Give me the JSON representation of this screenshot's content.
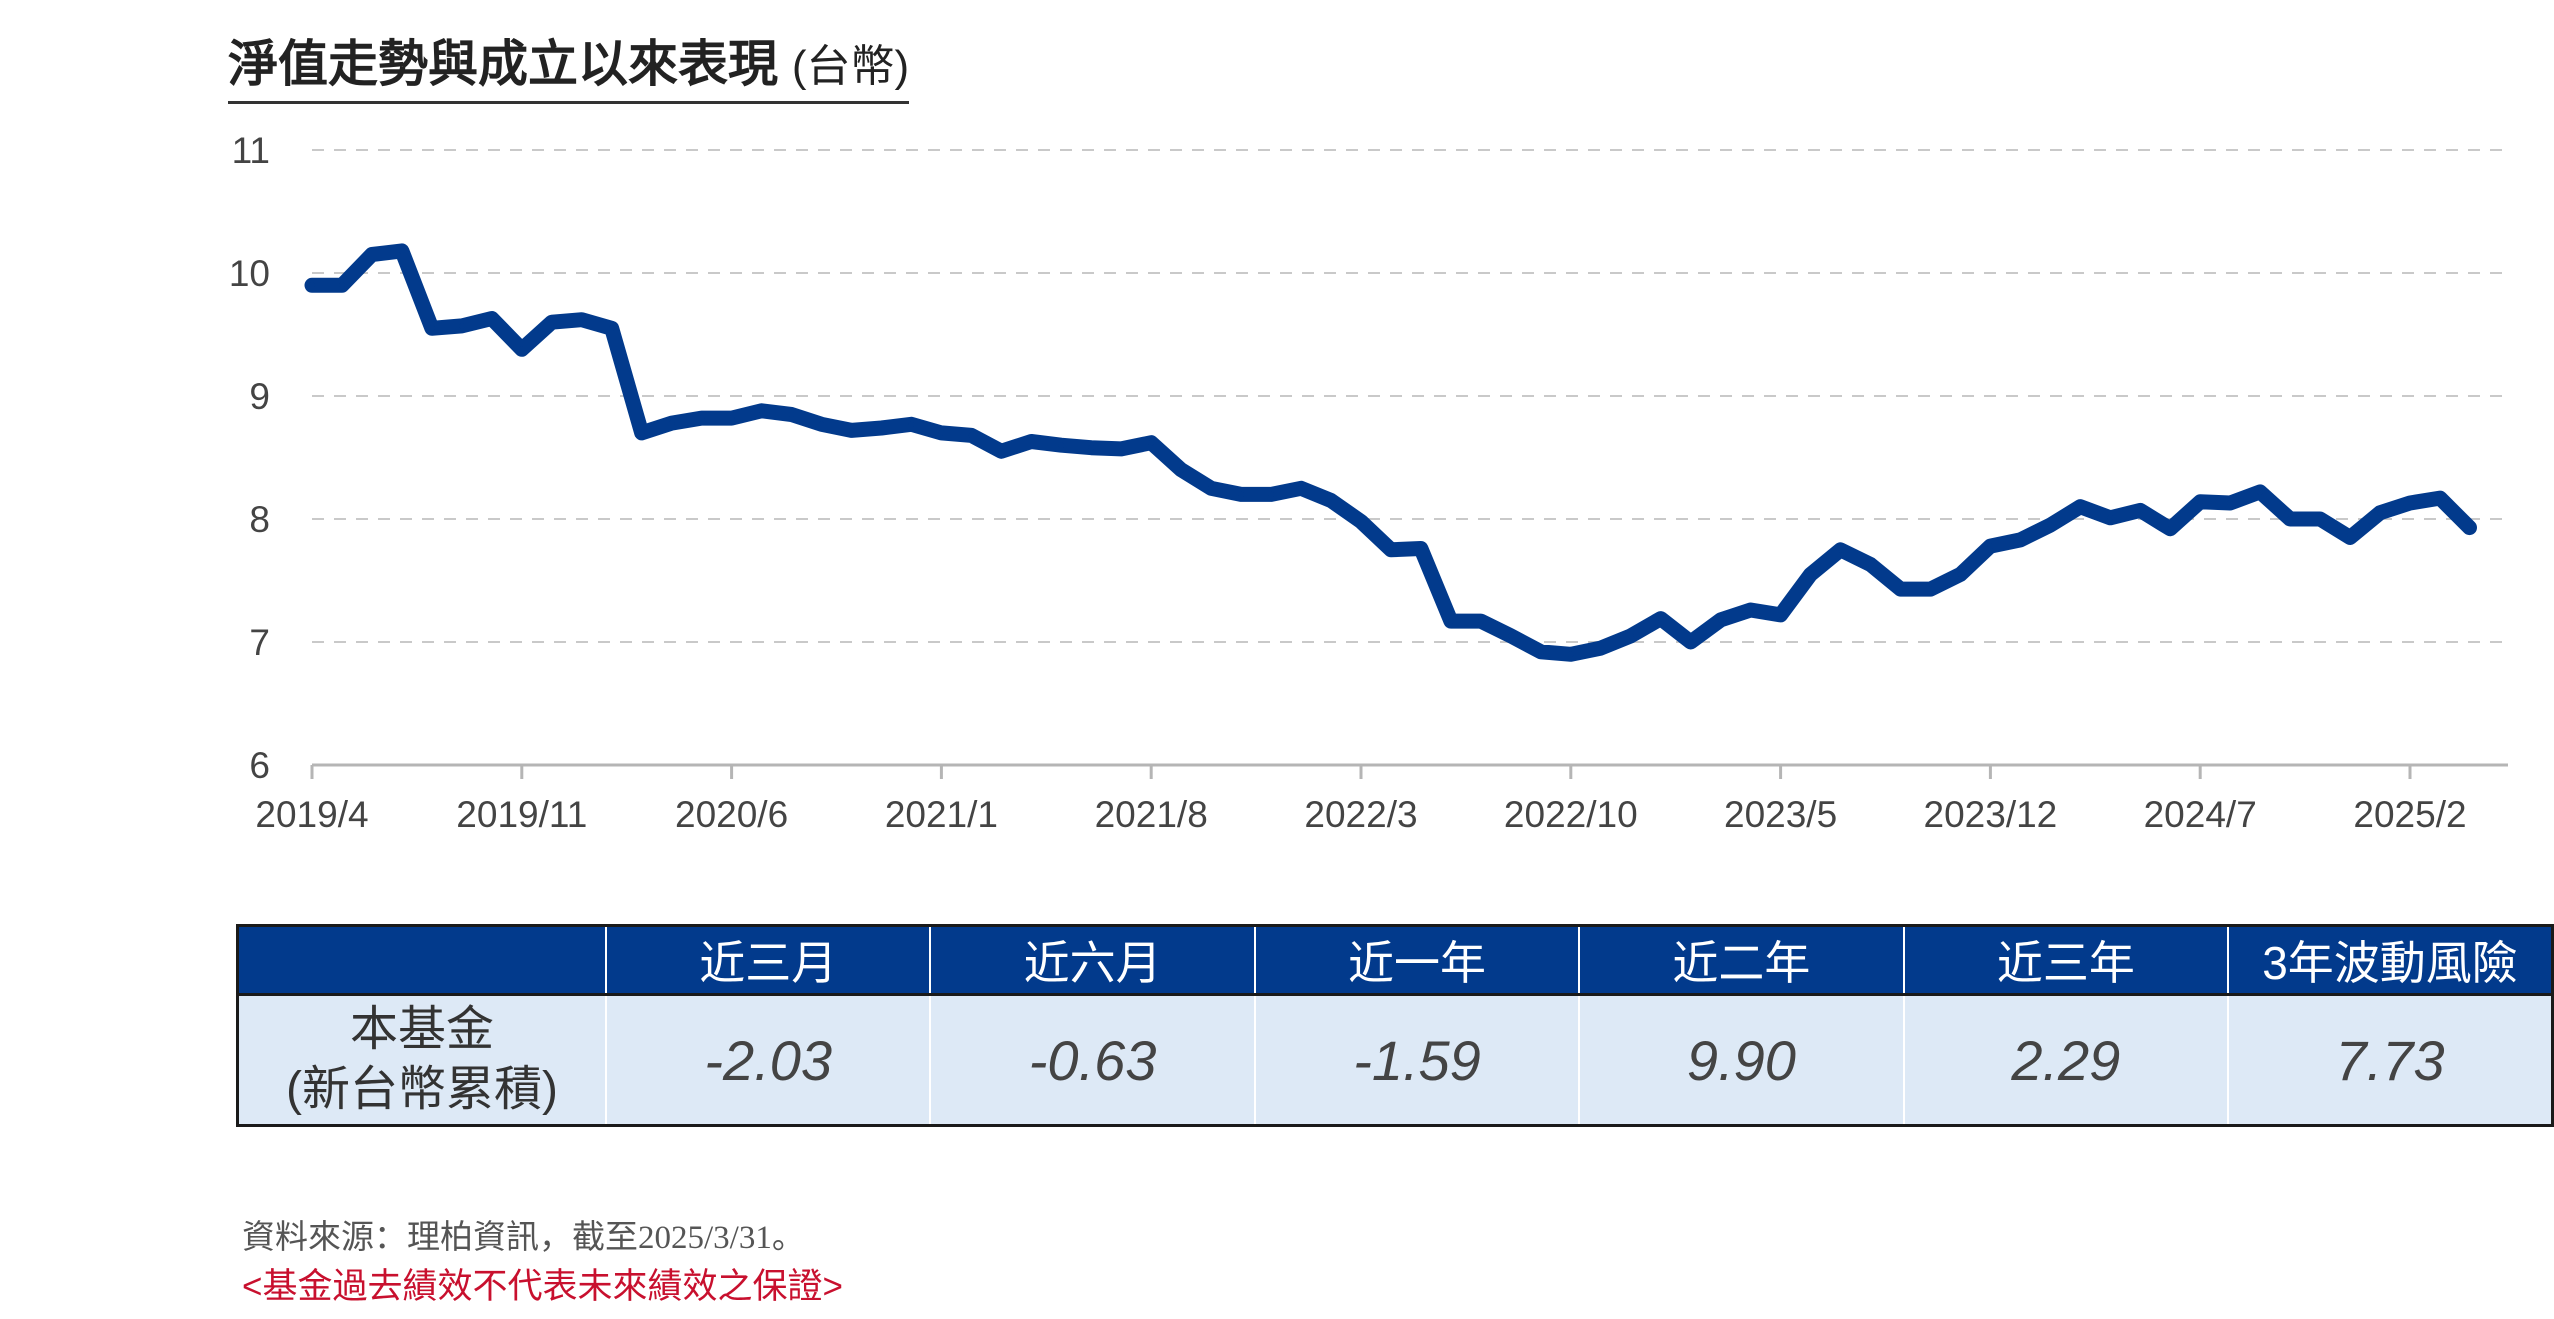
{
  "title": {
    "main": "淨值走勢與成立以來表現",
    "unit": "(台幣)"
  },
  "colors": {
    "line": "#023a8c",
    "header_bg": "#023a8c",
    "row_bg": "#dde9f6",
    "disclaimer": "#c8102e"
  },
  "chart_data": {
    "type": "line",
    "title": "淨值走勢與成立以來表現 (台幣)",
    "xlabel": "",
    "ylabel": "",
    "ylim": [
      6,
      11
    ],
    "yticks": [
      6,
      7,
      8,
      9,
      10,
      11
    ],
    "grid": "horizontal-dashed",
    "legend": "none",
    "xticks": [
      "2019/4",
      "2019/11",
      "2020/6",
      "2021/1",
      "2021/8",
      "2022/3",
      "2022/10",
      "2023/5",
      "2023/12",
      "2024/7",
      "2025/2"
    ],
    "x_range": [
      "2019/4",
      "2025/3"
    ],
    "series": [
      {
        "values": [
          [
            "2019/4",
            9.9
          ],
          [
            "2019/5",
            9.9
          ],
          [
            "2019/6",
            10.15
          ],
          [
            "2019/7",
            10.18
          ],
          [
            "2019/8",
            9.55
          ],
          [
            "2019/9",
            9.57
          ],
          [
            "2019/10",
            9.63
          ],
          [
            "2019/11",
            9.38
          ],
          [
            "2019/12",
            9.6
          ],
          [
            "2020/1",
            9.62
          ],
          [
            "2020/2",
            9.55
          ],
          [
            "2020/3",
            8.7
          ],
          [
            "2020/4",
            8.78
          ],
          [
            "2020/5",
            8.82
          ],
          [
            "2020/6",
            8.82
          ],
          [
            "2020/7",
            8.88
          ],
          [
            "2020/8",
            8.85
          ],
          [
            "2020/9",
            8.77
          ],
          [
            "2020/10",
            8.72
          ],
          [
            "2020/11",
            8.74
          ],
          [
            "2020/12",
            8.77
          ],
          [
            "2021/1",
            8.7
          ],
          [
            "2021/2",
            8.68
          ],
          [
            "2021/3",
            8.55
          ],
          [
            "2021/4",
            8.63
          ],
          [
            "2021/5",
            8.6
          ],
          [
            "2021/6",
            8.58
          ],
          [
            "2021/7",
            8.57
          ],
          [
            "2021/8",
            8.62
          ],
          [
            "2021/9",
            8.4
          ],
          [
            "2021/10",
            8.25
          ],
          [
            "2021/11",
            8.2
          ],
          [
            "2021/12",
            8.2
          ],
          [
            "2022/1",
            8.25
          ],
          [
            "2022/2",
            8.15
          ],
          [
            "2022/3",
            7.98
          ],
          [
            "2022/4",
            7.75
          ],
          [
            "2022/5",
            7.76
          ],
          [
            "2022/6",
            7.17
          ],
          [
            "2022/7",
            7.17
          ],
          [
            "2022/8",
            7.05
          ],
          [
            "2022/9",
            6.92
          ],
          [
            "2022/10",
            6.9
          ],
          [
            "2022/11",
            6.95
          ],
          [
            "2022/12",
            7.05
          ],
          [
            "2023/1",
            7.19
          ],
          [
            "2023/2",
            7.0
          ],
          [
            "2023/3",
            7.18
          ],
          [
            "2023/4",
            7.26
          ],
          [
            "2023/5",
            7.22
          ],
          [
            "2023/6",
            7.55
          ],
          [
            "2023/7",
            7.75
          ],
          [
            "2023/8",
            7.63
          ],
          [
            "2023/9",
            7.43
          ],
          [
            "2023/10",
            7.43
          ],
          [
            "2023/11",
            7.55
          ],
          [
            "2023/12",
            7.78
          ],
          [
            "2024/1",
            7.83
          ],
          [
            "2024/2",
            7.95
          ],
          [
            "2024/3",
            8.1
          ],
          [
            "2024/4",
            8.01
          ],
          [
            "2024/5",
            8.07
          ],
          [
            "2024/6",
            7.92
          ],
          [
            "2024/7",
            8.14
          ],
          [
            "2024/8",
            8.13
          ],
          [
            "2024/9",
            8.22
          ],
          [
            "2024/10",
            8.0
          ],
          [
            "2024/11",
            8.0
          ],
          [
            "2024/12",
            7.85
          ],
          [
            "2025/1",
            8.05
          ],
          [
            "2025/2",
            8.13
          ],
          [
            "2025/3",
            8.17
          ],
          [
            "2025/3/31",
            7.93
          ]
        ]
      }
    ]
  },
  "table": {
    "headers": [
      "",
      "近三月",
      "近六月",
      "近一年",
      "近二年",
      "近三年",
      "3年波動風險"
    ],
    "row_label_line1": "本基金",
    "row_label_line2": "(新台幣累積)",
    "values": [
      "-2.03",
      "-0.63",
      "-1.59",
      "9.90",
      "2.29",
      "7.73"
    ]
  },
  "footer": {
    "source": "資料來源：理柏資訊，截至2025/3/31。",
    "disclaimer": "<基金過去績效不代表未來績效之保證>"
  }
}
